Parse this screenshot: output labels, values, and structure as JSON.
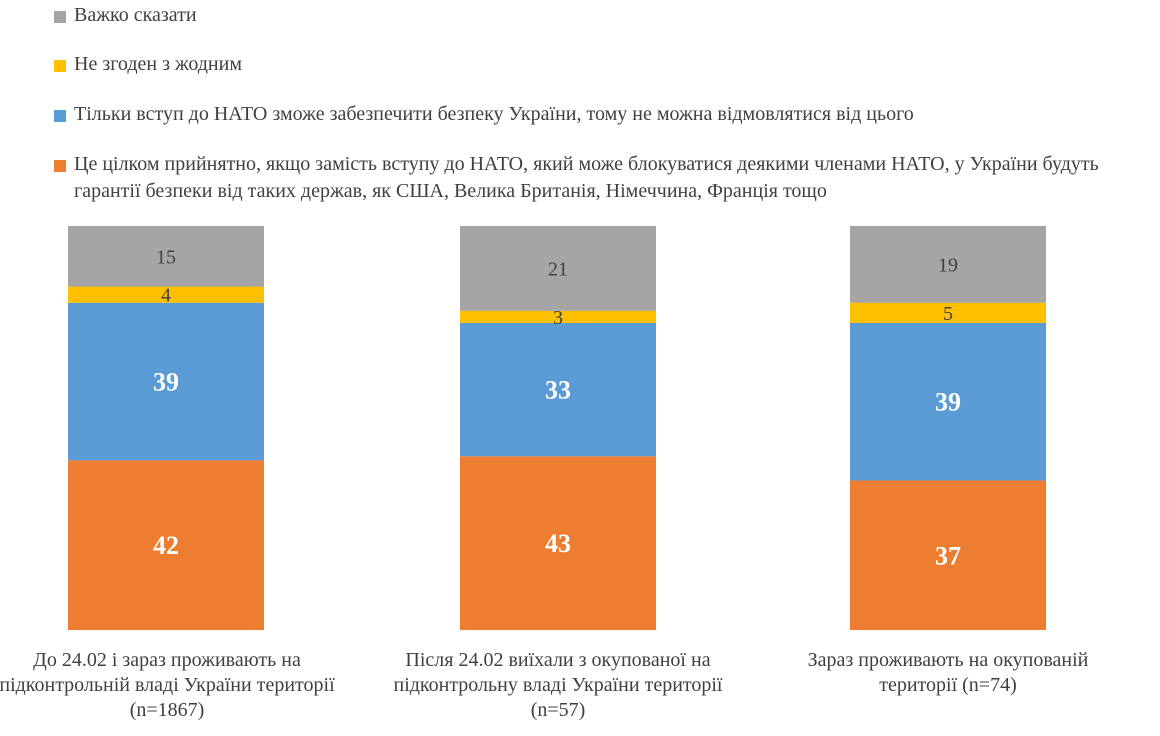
{
  "colors": {
    "hard_to_say": "#A5A5A5",
    "disagree_all": "#FFC000",
    "only_nato": "#5B9BD5",
    "acceptable": "#ED7D31"
  },
  "chart_data": {
    "type": "bar",
    "stacked": true,
    "categories": [
      "До 24.02 і зараз проживають на підконтрольній владі України території (n=1867)",
      "Після 24.02 виїхали з окупованої на підконтрольну владі України території (n=57)",
      "Зараз проживають на окупованій території (n=74)"
    ],
    "series": [
      {
        "name": "Це цілком прийнятно, якщо замість вступу до НАТО, який може блокуватися деякими членами НАТО, у України будуть гарантії безпеки від таких держав, як США, Велика Британія, Німеччина, Франція тощо",
        "color_key": "acceptable",
        "values": [
          42,
          43,
          37
        ]
      },
      {
        "name": "Тільки вступ до НАТО зможе забезпечити безпеку України, тому не можна відмовлятися від цього",
        "color_key": "only_nato",
        "values": [
          39,
          33,
          39
        ]
      },
      {
        "name": "Не згоден з жодним",
        "color_key": "disagree_all",
        "values": [
          4,
          3,
          5
        ]
      },
      {
        "name": "Важко сказати",
        "color_key": "hard_to_say",
        "values": [
          15,
          21,
          19
        ]
      }
    ],
    "ylim": [
      0,
      100
    ],
    "legend_position": "top",
    "grid": false
  }
}
